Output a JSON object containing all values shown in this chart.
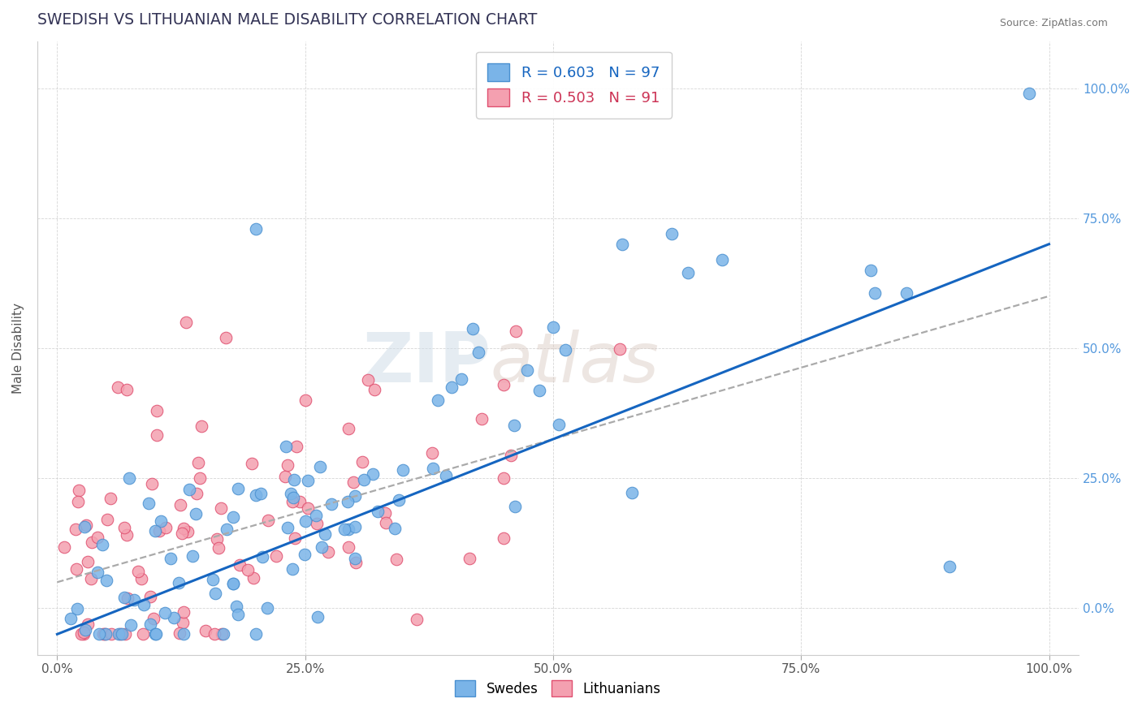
{
  "title": "SWEDISH VS LITHUANIAN MALE DISABILITY CORRELATION CHART",
  "source": "Source: ZipAtlas.com",
  "ylabel": "Male Disability",
  "swedish_color": "#7ab4e8",
  "lithuanian_color": "#f4a0b0",
  "swedish_line_color": "#1565c0",
  "lithuanian_line_color": "#e05070",
  "watermark_zip": "ZIP",
  "watermark_atlas": "atlas",
  "legend_r_swedish": "R = 0.603",
  "legend_n_swedish": "N = 97",
  "legend_r_lithuanian": "R = 0.503",
  "legend_n_lithuanian": "N = 91",
  "swedish_slope": 0.75,
  "swedish_intercept": -0.05,
  "lithuanian_slope": 0.55,
  "lithuanian_intercept": 0.05
}
